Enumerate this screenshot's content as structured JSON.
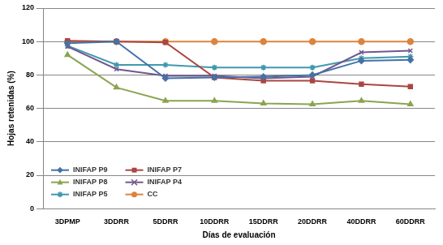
{
  "chart_data": {
    "type": "line",
    "x_label": "Días de evaluación",
    "y_label": "Hojas retenidas (%)",
    "categories": [
      "3DPMP",
      "3DDRR",
      "5DDRR",
      "10DDRR",
      "15DDRR",
      "20DDRR",
      "40DDRR",
      "60DDRR"
    ],
    "series": [
      {
        "name": "INIFAP P9",
        "color": "#4572A7",
        "marker": "diamond",
        "values": [
          99,
          100,
          78,
          78.5,
          79,
          80,
          88.5,
          89
        ]
      },
      {
        "name": "INIFAP P7",
        "color": "#AA4643",
        "marker": "square",
        "values": [
          100.5,
          100,
          99.5,
          78.5,
          76.5,
          76.5,
          74.5,
          73
        ]
      },
      {
        "name": "INIFAP P8",
        "color": "#89A54E",
        "marker": "triangle",
        "values": [
          92,
          72.5,
          64.5,
          64.5,
          63,
          62.5,
          64.5,
          62.5
        ]
      },
      {
        "name": "INIFAP P4",
        "color": "#71588F",
        "marker": "x",
        "values": [
          97,
          83.5,
          79.5,
          79.5,
          78,
          79,
          93.5,
          94.5
        ]
      },
      {
        "name": "INIFAP P5",
        "color": "#4198AF",
        "marker": "star",
        "values": [
          97.5,
          86,
          86,
          84.5,
          84.5,
          84.5,
          90,
          91
        ]
      },
      {
        "name": "CC",
        "color": "#DB843D",
        "marker": "circle",
        "values": [
          100,
          100,
          100,
          100,
          100,
          100,
          100,
          100
        ]
      }
    ],
    "ylim": [
      0,
      120
    ],
    "yticks": [
      0,
      20,
      40,
      60,
      80,
      100,
      120
    ],
    "grid": true,
    "legend": "lower left"
  }
}
